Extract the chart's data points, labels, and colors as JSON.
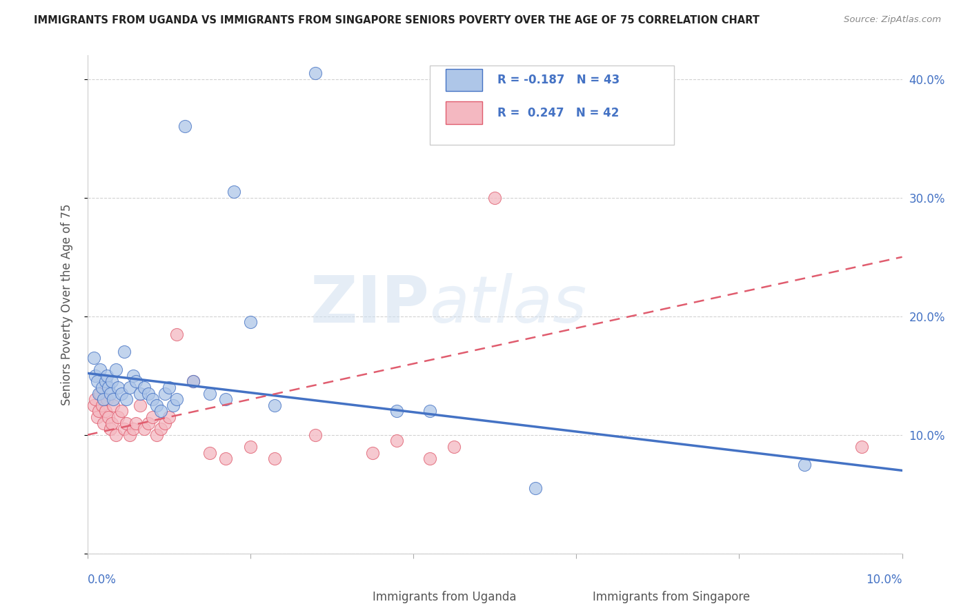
{
  "title": "IMMIGRANTS FROM UGANDA VS IMMIGRANTS FROM SINGAPORE SENIORS POVERTY OVER THE AGE OF 75 CORRELATION CHART",
  "source": "Source: ZipAtlas.com",
  "ylabel": "Seniors Poverty Over the Age of 75",
  "xlim": [
    0.0,
    10.0
  ],
  "ylim": [
    0.0,
    42.0
  ],
  "color_uganda": "#aec6e8",
  "color_singapore": "#f4b8c1",
  "color_uganda_line": "#4472c4",
  "color_singapore_line": "#e05c6e",
  "color_right_axis": "#4472c4",
  "background_color": "#ffffff",
  "watermark_zip": "ZIP",
  "watermark_atlas": "atlas",
  "uganda_x": [
    2.8,
    1.2,
    1.8,
    0.08,
    0.1,
    0.12,
    0.14,
    0.16,
    0.18,
    0.2,
    0.22,
    0.24,
    0.26,
    0.28,
    0.3,
    0.32,
    0.35,
    0.38,
    0.42,
    0.45,
    0.48,
    0.52,
    0.56,
    0.6,
    0.65,
    0.7,
    0.75,
    0.8,
    0.85,
    0.9,
    0.95,
    1.0,
    1.05,
    1.1,
    1.3,
    1.5,
    1.7,
    2.0,
    2.3,
    3.8,
    4.2,
    8.8,
    5.5
  ],
  "uganda_y": [
    40.5,
    36.0,
    30.5,
    16.5,
    15.0,
    14.5,
    13.5,
    15.5,
    14.0,
    13.0,
    14.5,
    15.0,
    14.0,
    13.5,
    14.5,
    13.0,
    15.5,
    14.0,
    13.5,
    17.0,
    13.0,
    14.0,
    15.0,
    14.5,
    13.5,
    14.0,
    13.5,
    13.0,
    12.5,
    12.0,
    13.5,
    14.0,
    12.5,
    13.0,
    14.5,
    13.5,
    13.0,
    19.5,
    12.5,
    12.0,
    12.0,
    7.5,
    5.5
  ],
  "singapore_x": [
    0.08,
    0.1,
    0.12,
    0.14,
    0.16,
    0.18,
    0.2,
    0.22,
    0.24,
    0.26,
    0.28,
    0.3,
    0.32,
    0.35,
    0.38,
    0.42,
    0.45,
    0.48,
    0.52,
    0.56,
    0.6,
    0.65,
    0.7,
    0.75,
    0.8,
    0.85,
    0.9,
    0.95,
    1.0,
    1.1,
    1.3,
    1.5,
    1.7,
    2.0,
    2.3,
    2.8,
    3.5,
    3.8,
    4.5,
    5.0,
    9.5,
    4.2
  ],
  "singapore_y": [
    12.5,
    13.0,
    11.5,
    12.0,
    13.5,
    12.5,
    11.0,
    12.0,
    13.0,
    11.5,
    10.5,
    11.0,
    12.5,
    10.0,
    11.5,
    12.0,
    10.5,
    11.0,
    10.0,
    10.5,
    11.0,
    12.5,
    10.5,
    11.0,
    11.5,
    10.0,
    10.5,
    11.0,
    11.5,
    18.5,
    14.5,
    8.5,
    8.0,
    9.0,
    8.0,
    10.0,
    8.5,
    9.5,
    9.0,
    30.0,
    9.0,
    8.0
  ],
  "ug_line_x0": 0.0,
  "ug_line_y0": 15.2,
  "ug_line_x1": 10.0,
  "ug_line_y1": 7.0,
  "sg_line_x0": 0.0,
  "sg_line_y0": 10.0,
  "sg_line_x1": 10.0,
  "sg_line_y1": 25.0,
  "legend_R_ug": "R = -0.187",
  "legend_N_ug": "N = 43",
  "legend_R_sg": "R =  0.247",
  "legend_N_sg": "N = 42",
  "bottom_label_ug": "Immigrants from Uganda",
  "bottom_label_sg": "Immigrants from Singapore"
}
